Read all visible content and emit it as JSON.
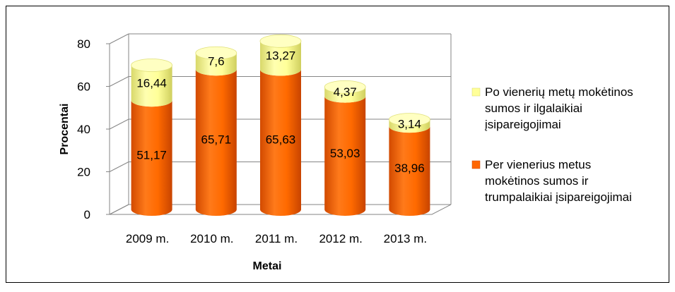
{
  "chart_data": {
    "type": "bar",
    "stacked": true,
    "style": "3d-cylinder",
    "categories": [
      "2009 m.",
      "2010 m.",
      "2011 m.",
      "2012 m.",
      "2013 m."
    ],
    "series": [
      {
        "name": "Per vienerius metus mokėtinos sumos ir trumpalaikiai įsipareigojimai",
        "legend_lines": [
          "Per vienerius metus",
          "mokėtinos sumos ir",
          "trumpalaikiai įsipareigojimai"
        ],
        "color": "#FF6600",
        "values": [
          51.17,
          65.71,
          65.63,
          53.03,
          38.96
        ],
        "labels": [
          "51,17",
          "65,71",
          "65,63",
          "53,03",
          "38,96"
        ]
      },
      {
        "name": "Po vienerių metų mokėtinos sumos ir ilgalaikiai įsipareigojimai",
        "legend_lines": [
          "Po vienerių metų mokėtinos",
          "sumos ir ilgalaikiai",
          "įsipareigojimai"
        ],
        "color": "#FFFF99",
        "values": [
          16.44,
          7.6,
          13.27,
          4.37,
          3.14
        ],
        "labels": [
          "16,44",
          "7,6",
          "13,27",
          "4,37",
          "3,14"
        ]
      }
    ],
    "title": "",
    "xlabel": "Metai",
    "ylabel": "Procentai",
    "ylim": [
      0,
      80
    ],
    "yticks": [
      0,
      20,
      40,
      60,
      80
    ],
    "grid": true,
    "legend_position": "right"
  }
}
